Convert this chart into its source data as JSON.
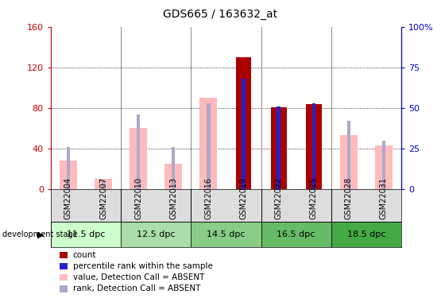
{
  "title": "GDS665 / 163632_at",
  "samples": [
    "GSM22004",
    "GSM22007",
    "GSM22010",
    "GSM22013",
    "GSM22016",
    "GSM22019",
    "GSM22022",
    "GSM22025",
    "GSM22028",
    "GSM22031"
  ],
  "count_values": [
    null,
    null,
    null,
    null,
    null,
    130,
    81,
    84,
    null,
    null
  ],
  "rank_pct_values": [
    null,
    null,
    null,
    null,
    null,
    68,
    51,
    53,
    null,
    null
  ],
  "absent_value": [
    28,
    10,
    60,
    25,
    90,
    null,
    null,
    null,
    53,
    43
  ],
  "absent_rank_pct": [
    26,
    6,
    46,
    26,
    53,
    null,
    null,
    null,
    42,
    30
  ],
  "dev_stages": [
    {
      "label": "11.5 dpc",
      "color": "#ccffcc"
    },
    {
      "label": "12.5 dpc",
      "color": "#aaddaa"
    },
    {
      "label": "14.5 dpc",
      "color": "#88cc88"
    },
    {
      "label": "16.5 dpc",
      "color": "#66bb66"
    },
    {
      "label": "18.5 dpc",
      "color": "#44aa44"
    }
  ],
  "left_ylim": [
    0,
    160
  ],
  "right_ylim": [
    0,
    100
  ],
  "left_yticks": [
    0,
    40,
    80,
    120,
    160
  ],
  "right_yticks": [
    0,
    25,
    50,
    75,
    100
  ],
  "bar_color_count": "#aa0000",
  "bar_color_absent_value": "#ffbbbb",
  "bar_color_rank": "#2222cc",
  "bar_color_absent_rank": "#aaaacc",
  "left_tick_color": "#cc0000",
  "right_tick_color": "#0000cc",
  "bg_color": "#ffffff"
}
